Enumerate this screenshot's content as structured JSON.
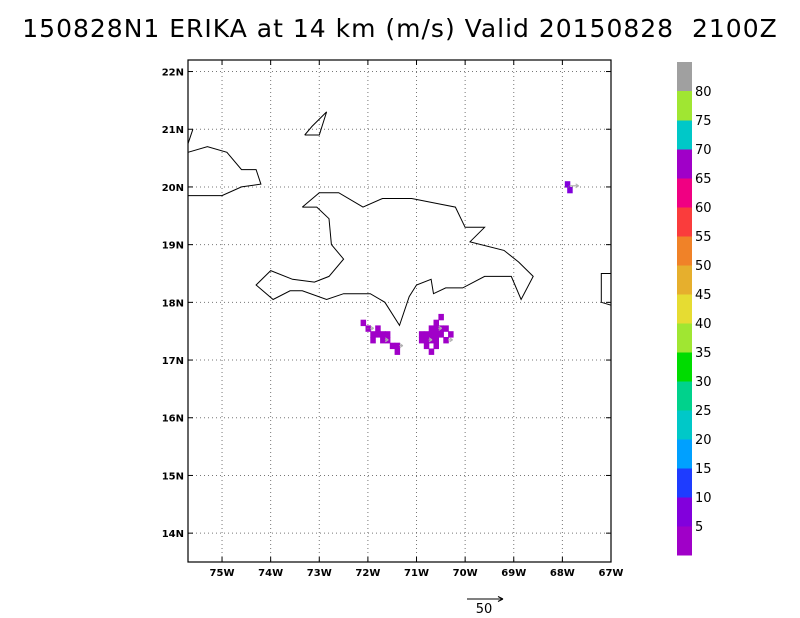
{
  "title": "150828N1 ERIKA at 14 km (m/s) Valid 20150828  2100Z",
  "map": {
    "lon_range": [
      -75.7,
      -67.0
    ],
    "lat_range": [
      13.5,
      22.2
    ],
    "lon_ticks": [
      {
        "value": -75,
        "label": "75W"
      },
      {
        "value": -74,
        "label": "74W"
      },
      {
        "value": -73,
        "label": "73W"
      },
      {
        "value": -72,
        "label": "72W"
      },
      {
        "value": -71,
        "label": "71W"
      },
      {
        "value": -70,
        "label": "70W"
      },
      {
        "value": -69,
        "label": "69W"
      },
      {
        "value": -68,
        "label": "68W"
      },
      {
        "value": -67,
        "label": "67W"
      }
    ],
    "lat_ticks": [
      {
        "value": 22,
        "label": "22N"
      },
      {
        "value": 21,
        "label": "21N"
      },
      {
        "value": 20,
        "label": "20N"
      },
      {
        "value": 19,
        "label": "19N"
      },
      {
        "value": 18,
        "label": "18N"
      },
      {
        "value": 17,
        "label": "17N"
      },
      {
        "value": 16,
        "label": "16N"
      },
      {
        "value": 15,
        "label": "15N"
      },
      {
        "value": 14,
        "label": "14N"
      }
    ],
    "grid": "dotted",
    "coastlines": [
      [
        [
          -75.7,
          20.6
        ],
        [
          -75.3,
          20.7
        ],
        [
          -74.9,
          20.6
        ],
        [
          -74.6,
          20.3
        ],
        [
          -74.3,
          20.3
        ],
        [
          -74.2,
          20.05
        ],
        [
          -74.6,
          20.0
        ],
        [
          -75.0,
          19.85
        ],
        [
          -75.4,
          19.85
        ],
        [
          -75.7,
          19.85
        ]
      ],
      [
        [
          -73.3,
          20.9
        ],
        [
          -73.0,
          20.9
        ],
        [
          -72.85,
          21.3
        ],
        [
          -73.15,
          21.05
        ],
        [
          -73.3,
          20.9
        ]
      ],
      [
        [
          -75.7,
          20.75
        ],
        [
          -75.6,
          21.0
        ]
      ],
      [
        [
          -73.35,
          19.65
        ],
        [
          -73.0,
          19.9
        ],
        [
          -72.6,
          19.9
        ],
        [
          -72.1,
          19.65
        ],
        [
          -71.7,
          19.8
        ],
        [
          -71.1,
          19.8
        ],
        [
          -70.5,
          19.7
        ],
        [
          -70.2,
          19.65
        ],
        [
          -70.0,
          19.3
        ],
        [
          -69.6,
          19.3
        ],
        [
          -69.9,
          19.05
        ],
        [
          -69.2,
          18.9
        ],
        [
          -68.9,
          18.7
        ],
        [
          -68.6,
          18.45
        ],
        [
          -68.85,
          18.05
        ],
        [
          -69.05,
          18.45
        ],
        [
          -69.6,
          18.45
        ],
        [
          -70.05,
          18.25
        ],
        [
          -70.4,
          18.25
        ],
        [
          -70.65,
          18.15
        ],
        [
          -70.7,
          18.4
        ],
        [
          -71.0,
          18.3
        ],
        [
          -71.15,
          18.1
        ],
        [
          -71.35,
          17.6
        ],
        [
          -71.65,
          18.0
        ],
        [
          -71.95,
          18.15
        ],
        [
          -72.5,
          18.15
        ],
        [
          -72.85,
          18.05
        ],
        [
          -73.35,
          18.2
        ],
        [
          -73.6,
          18.2
        ],
        [
          -73.95,
          18.05
        ],
        [
          -74.3,
          18.3
        ],
        [
          -74.0,
          18.55
        ],
        [
          -73.55,
          18.4
        ],
        [
          -73.1,
          18.35
        ],
        [
          -72.8,
          18.45
        ],
        [
          -72.5,
          18.75
        ],
        [
          -72.75,
          19.0
        ],
        [
          -72.8,
          19.45
        ],
        [
          -73.05,
          19.65
        ],
        [
          -73.35,
          19.65
        ]
      ],
      [
        [
          -67.0,
          18.5
        ],
        [
          -67.2,
          18.5
        ],
        [
          -67.2,
          18.0
        ],
        [
          -67.0,
          17.95
        ]
      ]
    ],
    "wind_cells": [
      {
        "lon": -72.1,
        "lat": 17.65,
        "speed": 5
      },
      {
        "lon": -72.0,
        "lat": 17.55,
        "speed": 5
      },
      {
        "lon": -71.9,
        "lat": 17.45,
        "speed": 5
      },
      {
        "lon": -71.9,
        "lat": 17.35,
        "speed": 5
      },
      {
        "lon": -71.8,
        "lat": 17.55,
        "speed": 5
      },
      {
        "lon": -71.8,
        "lat": 17.45,
        "speed": 5
      },
      {
        "lon": -71.7,
        "lat": 17.45,
        "speed": 5
      },
      {
        "lon": -71.7,
        "lat": 17.35,
        "speed": 5
      },
      {
        "lon": -71.6,
        "lat": 17.45,
        "speed": 5
      },
      {
        "lon": -71.6,
        "lat": 17.35,
        "speed": 5
      },
      {
        "lon": -71.5,
        "lat": 17.25,
        "speed": 5
      },
      {
        "lon": -71.4,
        "lat": 17.25,
        "speed": 5
      },
      {
        "lon": -71.4,
        "lat": 17.15,
        "speed": 5
      },
      {
        "lon": -70.9,
        "lat": 17.45,
        "speed": 5
      },
      {
        "lon": -70.9,
        "lat": 17.35,
        "speed": 5
      },
      {
        "lon": -70.8,
        "lat": 17.45,
        "speed": 5
      },
      {
        "lon": -70.8,
        "lat": 17.35,
        "speed": 5
      },
      {
        "lon": -70.8,
        "lat": 17.25,
        "speed": 5
      },
      {
        "lon": -70.7,
        "lat": 17.55,
        "speed": 5
      },
      {
        "lon": -70.7,
        "lat": 17.45,
        "speed": 5
      },
      {
        "lon": -70.7,
        "lat": 17.35,
        "speed": 5
      },
      {
        "lon": -70.7,
        "lat": 17.15,
        "speed": 5
      },
      {
        "lon": -70.6,
        "lat": 17.65,
        "speed": 5
      },
      {
        "lon": -70.6,
        "lat": 17.55,
        "speed": 5
      },
      {
        "lon": -70.6,
        "lat": 17.45,
        "speed": 5
      },
      {
        "lon": -70.6,
        "lat": 17.35,
        "speed": 5
      },
      {
        "lon": -70.6,
        "lat": 17.25,
        "speed": 5
      },
      {
        "lon": -70.5,
        "lat": 17.75,
        "speed": 5
      },
      {
        "lon": -70.5,
        "lat": 17.55,
        "speed": 5
      },
      {
        "lon": -70.5,
        "lat": 17.45,
        "speed": 5
      },
      {
        "lon": -70.4,
        "lat": 17.55,
        "speed": 5
      },
      {
        "lon": -70.4,
        "lat": 17.35,
        "speed": 5
      },
      {
        "lon": -70.3,
        "lat": 17.45,
        "speed": 5
      },
      {
        "lon": -67.9,
        "lat": 20.05,
        "speed": 10
      },
      {
        "lon": -67.85,
        "lat": 19.95,
        "speed": 10
      }
    ],
    "wind_vectors": [
      {
        "lon": -71.95,
        "lat": 17.55,
        "u": 3,
        "v": 0
      },
      {
        "lon": -71.65,
        "lat": 17.35,
        "u": 3,
        "v": 0
      },
      {
        "lon": -71.35,
        "lat": 17.25,
        "u": 3,
        "v": 0
      },
      {
        "lon": -70.75,
        "lat": 17.35,
        "u": 3,
        "v": 0
      },
      {
        "lon": -70.55,
        "lat": 17.55,
        "u": 3,
        "v": 0
      },
      {
        "lon": -70.35,
        "lat": 17.35,
        "u": 4,
        "v": 0
      },
      {
        "lon": -67.85,
        "lat": 20.02,
        "u": 8,
        "v": 0
      }
    ]
  },
  "colorbar": {
    "top_color": "#a0a0a0",
    "bins": [
      {
        "color": "#a000c8",
        "label": "5"
      },
      {
        "color": "#8200dc",
        "label": "10"
      },
      {
        "color": "#1e3cff",
        "label": "15"
      },
      {
        "color": "#00a0ff",
        "label": "20"
      },
      {
        "color": "#00c8c8",
        "label": "25"
      },
      {
        "color": "#00d28c",
        "label": "30"
      },
      {
        "color": "#00dc00",
        "label": "35"
      },
      {
        "color": "#a0e632",
        "label": "40"
      },
      {
        "color": "#e6dc32",
        "label": "45"
      },
      {
        "color": "#e6af2d",
        "label": "50"
      },
      {
        "color": "#f08228",
        "label": "55"
      },
      {
        "color": "#fa3c3c",
        "label": "60"
      },
      {
        "color": "#f00082",
        "label": "65"
      },
      {
        "color": "#a000c8",
        "label": "70"
      },
      {
        "color": "#00c8c8",
        "label": "75"
      },
      {
        "color": "#a0e632",
        "label": "80"
      }
    ]
  },
  "vector_scale": {
    "label": "50"
  }
}
